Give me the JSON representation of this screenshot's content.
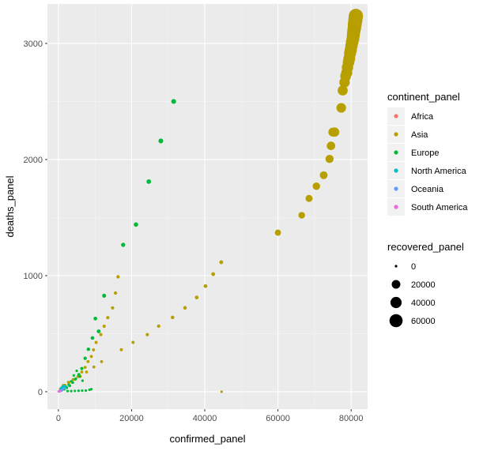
{
  "chart_data": {
    "type": "scatter",
    "xlabel": "confirmed_panel",
    "ylabel": "deaths_panel",
    "xlim": [
      -3000,
      84500
    ],
    "ylim": [
      -150,
      3340
    ],
    "x_ticks": [
      0,
      20000,
      40000,
      60000,
      80000
    ],
    "x_tick_labels": [
      "0",
      "20000",
      "40000",
      "60000",
      "80000"
    ],
    "y_ticks": [
      0,
      1000,
      2000,
      3000
    ],
    "y_tick_labels": [
      "0",
      "1000",
      "2000",
      "3000"
    ],
    "grid": true,
    "background": "#ebebeb",
    "legend_position": "right",
    "color_legend": {
      "title": "continent_panel",
      "entries": [
        {
          "label": "Africa",
          "color": "#F8766D"
        },
        {
          "label": "Asia",
          "color": "#B79F00"
        },
        {
          "label": "Europe",
          "color": "#00BA38"
        },
        {
          "label": "North America",
          "color": "#00BFC4"
        },
        {
          "label": "Oceania",
          "color": "#619CFF"
        },
        {
          "label": "South America",
          "color": "#F564E3"
        }
      ]
    },
    "size_legend": {
      "title": "recovered_panel",
      "entries": [
        {
          "label": "0",
          "value": 0
        },
        {
          "label": "20000",
          "value": 20000
        },
        {
          "label": "40000",
          "value": 40000
        },
        {
          "label": "60000",
          "value": 60000
        }
      ]
    },
    "series": [
      {
        "name": "Asia",
        "color": "#B79F00",
        "points": [
          [
            44500,
            1115,
            1000
          ],
          [
            42300,
            1013,
            900
          ],
          [
            40200,
            910,
            800
          ],
          [
            37800,
            812,
            700
          ],
          [
            34600,
            722,
            600
          ],
          [
            31200,
            640,
            500
          ],
          [
            27400,
            565,
            400
          ],
          [
            24300,
            492,
            300
          ],
          [
            20400,
            425,
            200
          ],
          [
            17200,
            362,
            150
          ],
          [
            11800,
            259,
            100
          ],
          [
            9700,
            213,
            80
          ],
          [
            7700,
            170,
            60
          ],
          [
            6000,
            132,
            40
          ],
          [
            4500,
            107,
            30
          ],
          [
            2700,
            82,
            20
          ],
          [
            1300,
            56,
            10
          ],
          [
            500,
            25,
            5
          ],
          [
            600,
            17,
            0
          ],
          [
            900,
            26,
            0
          ],
          [
            1300,
            41,
            10
          ],
          [
            1800,
            56,
            20
          ],
          [
            2900,
            80,
            30
          ],
          [
            4000,
            106,
            40
          ],
          [
            5300,
            130,
            60
          ],
          [
            6400,
            170,
            80
          ],
          [
            7300,
            210,
            100
          ],
          [
            8100,
            260,
            120
          ],
          [
            9000,
            304,
            140
          ],
          [
            9600,
            361,
            160
          ],
          [
            10300,
            425,
            180
          ],
          [
            11600,
            492,
            200
          ],
          [
            12500,
            564,
            230
          ],
          [
            13500,
            638,
            260
          ],
          [
            14800,
            722,
            300
          ],
          [
            15600,
            850,
            350
          ],
          [
            16300,
            990,
            400
          ],
          [
            44600,
            0,
            0
          ],
          [
            60000,
            1370,
            7000
          ],
          [
            66500,
            1520,
            9000
          ],
          [
            68500,
            1665,
            11000
          ],
          [
            70500,
            1770,
            13000
          ],
          [
            72500,
            1865,
            15000
          ],
          [
            74100,
            2005,
            17000
          ],
          [
            74500,
            2118,
            19000
          ],
          [
            75000,
            2236,
            22000
          ],
          [
            75500,
            2236,
            24000
          ],
          [
            77300,
            2445,
            27000
          ],
          [
            77700,
            2595,
            30000
          ],
          [
            78200,
            2665,
            33000
          ],
          [
            78500,
            2718,
            36000
          ],
          [
            78800,
            2747,
            39000
          ],
          [
            79000,
            2793,
            42000
          ],
          [
            79300,
            2838,
            44000
          ],
          [
            79500,
            2870,
            46000
          ],
          [
            79700,
            2915,
            48000
          ],
          [
            79900,
            2943,
            50000
          ],
          [
            80100,
            2981,
            52000
          ],
          [
            80300,
            3013,
            54000
          ],
          [
            80500,
            3042,
            56000
          ],
          [
            80600,
            3070,
            58000
          ],
          [
            80700,
            3097,
            60000
          ],
          [
            80800,
            3119,
            62000
          ],
          [
            80900,
            3136,
            64000
          ],
          [
            80950,
            3158,
            66000
          ],
          [
            81000,
            3169,
            67000
          ],
          [
            81050,
            3176,
            68000
          ],
          [
            81100,
            3189,
            69000
          ],
          [
            81150,
            3199,
            70000
          ],
          [
            81200,
            3213,
            71000
          ],
          [
            81250,
            3226,
            72000
          ],
          [
            81300,
            3237,
            73000
          ]
        ]
      },
      {
        "name": "Europe",
        "color": "#00BA38",
        "points": [
          [
            31500,
            2500,
            2900
          ],
          [
            28000,
            2160,
            2700
          ],
          [
            24700,
            1810,
            2300
          ],
          [
            21200,
            1440,
            1900
          ],
          [
            17700,
            1265,
            1600
          ],
          [
            12500,
            827,
            1200
          ],
          [
            11000,
            520,
            900
          ],
          [
            10100,
            630,
            800
          ],
          [
            9300,
            463,
            600
          ],
          [
            8200,
            366,
            500
          ],
          [
            7300,
            288,
            400
          ],
          [
            6400,
            200,
            300
          ],
          [
            5600,
            148,
            200
          ],
          [
            4700,
            110,
            100
          ],
          [
            3900,
            80,
            80
          ],
          [
            3100,
            52,
            60
          ],
          [
            2300,
            35,
            40
          ],
          [
            1600,
            21,
            20
          ],
          [
            900,
            12,
            10
          ],
          [
            400,
            7,
            0
          ],
          [
            1200,
            30,
            0
          ],
          [
            2000,
            45,
            0
          ],
          [
            2800,
            60,
            0
          ],
          [
            3500,
            90,
            0
          ],
          [
            4200,
            140,
            0
          ],
          [
            5000,
            180,
            0
          ],
          [
            5800,
            130,
            0
          ],
          [
            6600,
            95,
            0
          ],
          [
            2500,
            6,
            0
          ],
          [
            3500,
            6,
            0
          ],
          [
            4500,
            7,
            0
          ],
          [
            5500,
            8,
            0
          ],
          [
            6500,
            9,
            0
          ],
          [
            7500,
            10,
            0
          ],
          [
            8500,
            17,
            0
          ],
          [
            9000,
            22,
            0
          ]
        ]
      },
      {
        "name": "North America",
        "color": "#00BFC4",
        "points": [
          [
            300,
            5,
            0
          ],
          [
            600,
            12,
            0
          ],
          [
            900,
            20,
            0
          ],
          [
            1200,
            28,
            0
          ],
          [
            1600,
            38,
            0
          ],
          [
            2000,
            45,
            0
          ],
          [
            1000,
            40,
            0
          ],
          [
            1400,
            50,
            0
          ],
          [
            700,
            30,
            0
          ]
        ]
      },
      {
        "name": "Oceania",
        "color": "#619CFF",
        "points": [
          [
            200,
            3,
            0
          ],
          [
            400,
            6,
            0
          ],
          [
            700,
            10,
            0
          ],
          [
            1100,
            18,
            0
          ],
          [
            1500,
            28,
            0
          ]
        ]
      },
      {
        "name": "South America",
        "color": "#F564E3",
        "points": [
          [
            100,
            2,
            0
          ],
          [
            300,
            4,
            0
          ],
          [
            500,
            6,
            0
          ]
        ]
      }
    ]
  }
}
